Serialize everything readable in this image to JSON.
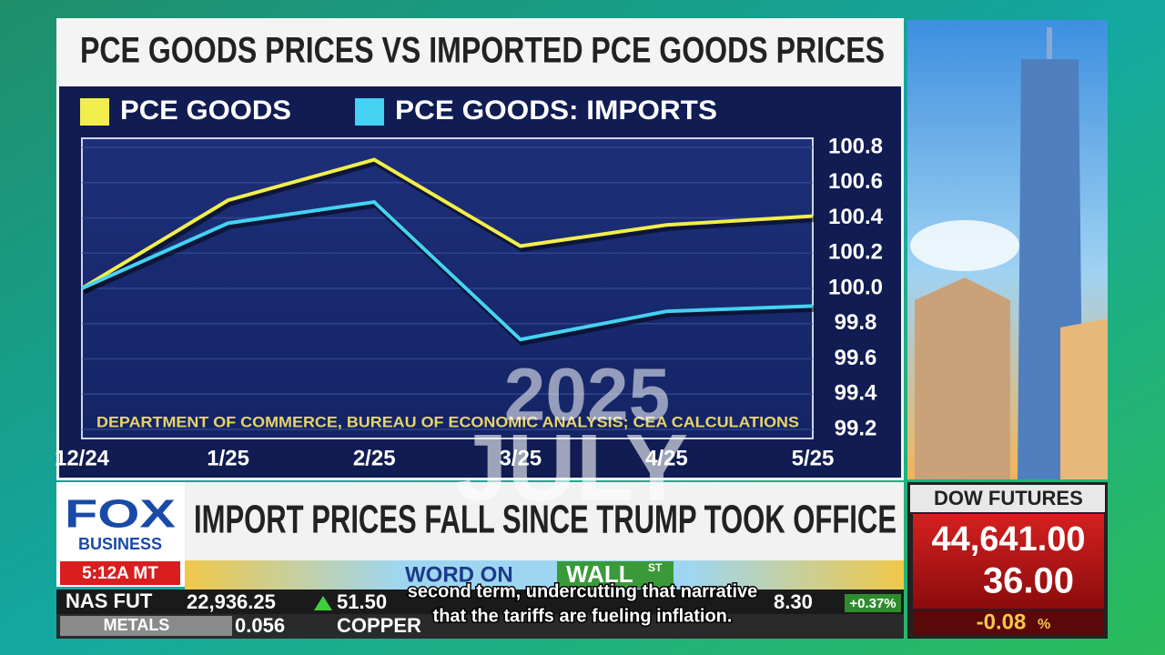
{
  "chart_data": {
    "type": "line",
    "title": "PCE GOODS PRICES VS IMPORTED PCE GOODS PRICES",
    "source": "DEPARTMENT OF COMMERCE, BUREAU OF ECONOMIC ANALYSIS; CEA CALCULATIONS",
    "categories": [
      "12/24",
      "1/25",
      "2/25",
      "3/25",
      "4/25",
      "5/25"
    ],
    "series": [
      {
        "name": "PCE GOODS",
        "color": "#f2ee4c",
        "values": [
          100.0,
          100.5,
          100.73,
          100.24,
          100.36,
          100.41
        ]
      },
      {
        "name": "PCE GOODS: IMPORTS",
        "color": "#45d2f2",
        "values": [
          100.0,
          100.37,
          100.49,
          99.71,
          99.87,
          99.9
        ]
      }
    ],
    "ylim": [
      99.2,
      100.8
    ],
    "yticks": [
      99.2,
      99.4,
      99.6,
      99.8,
      {
        "value": 100,
        "label": "100.0"
      },
      100.2,
      100.4,
      100.6,
      100.8
    ],
    "grid": true,
    "y_axis_side": "right"
  },
  "broadcast": {
    "channel": "FOX",
    "network": "BUSINESS",
    "time": "5:12A MT",
    "headline": "IMPORT PRICES FALL SINCE TRUMP TOOK OFFICE",
    "segment": [
      "WORD ON",
      "WALL",
      "ST"
    ],
    "dow": {
      "label": "DOW FUTURES",
      "value": "44,641.00",
      "change": "36.00",
      "percent": "-0.08",
      "percent_sign": "%"
    },
    "ticker": {
      "nas_label": "NAS FUT",
      "nas_value": "22,936.25",
      "nas_change": "51.50",
      "other_change": "8.30",
      "other_percent": "+0.37%",
      "metals_label": "METALS",
      "metals_value": "0.056",
      "copper_label": "COPPER"
    },
    "watermark": {
      "year": "2025",
      "month": "JULY"
    },
    "captions": [
      "second term, undercutting that narrative",
      "that the tariffs are fueling inflation."
    ]
  }
}
